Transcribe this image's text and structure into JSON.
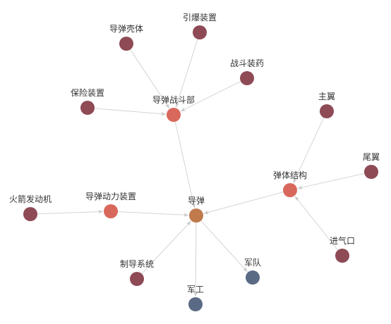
{
  "nodes": [
    {
      "label": "导弹",
      "color": "#c07a4c"
    },
    {
      "label": "导弹战斗部",
      "color": "#d9685c"
    },
    {
      "label": "导弹壳体",
      "color": "#8e4a55"
    },
    {
      "label": "引爆装置",
      "color": "#8e4a55"
    },
    {
      "label": "战斗装药",
      "color": "#8e4a55"
    },
    {
      "label": "保险装置",
      "color": "#8e4a55"
    },
    {
      "label": "弹体结构",
      "color": "#d9685c"
    },
    {
      "label": "主翼",
      "color": "#8e4a55"
    },
    {
      "label": "尾翼",
      "color": "#8e4a55"
    },
    {
      "label": "进气口",
      "color": "#8e4a55"
    },
    {
      "label": "导弹动力装置",
      "color": "#d9685c"
    },
    {
      "label": "火箭发动机",
      "color": "#8e4a55"
    },
    {
      "label": "制导系统",
      "color": "#8e4a55"
    },
    {
      "label": "军队",
      "color": "#5a6a84"
    },
    {
      "label": "军工",
      "color": "#5a6a84"
    }
  ],
  "edges": [
    {
      "from": 2,
      "to": 1
    },
    {
      "from": 3,
      "to": 1
    },
    {
      "from": 4,
      "to": 1
    },
    {
      "from": 5,
      "to": 1
    },
    {
      "from": 1,
      "to": 0
    },
    {
      "from": 7,
      "to": 6
    },
    {
      "from": 8,
      "to": 6
    },
    {
      "from": 9,
      "to": 6
    },
    {
      "from": 6,
      "to": 0
    },
    {
      "from": 11,
      "to": 10
    },
    {
      "from": 10,
      "to": 0
    },
    {
      "from": 12,
      "to": 0
    },
    {
      "from": 0,
      "to": 13
    },
    {
      "from": 0,
      "to": 14
    }
  ]
}
